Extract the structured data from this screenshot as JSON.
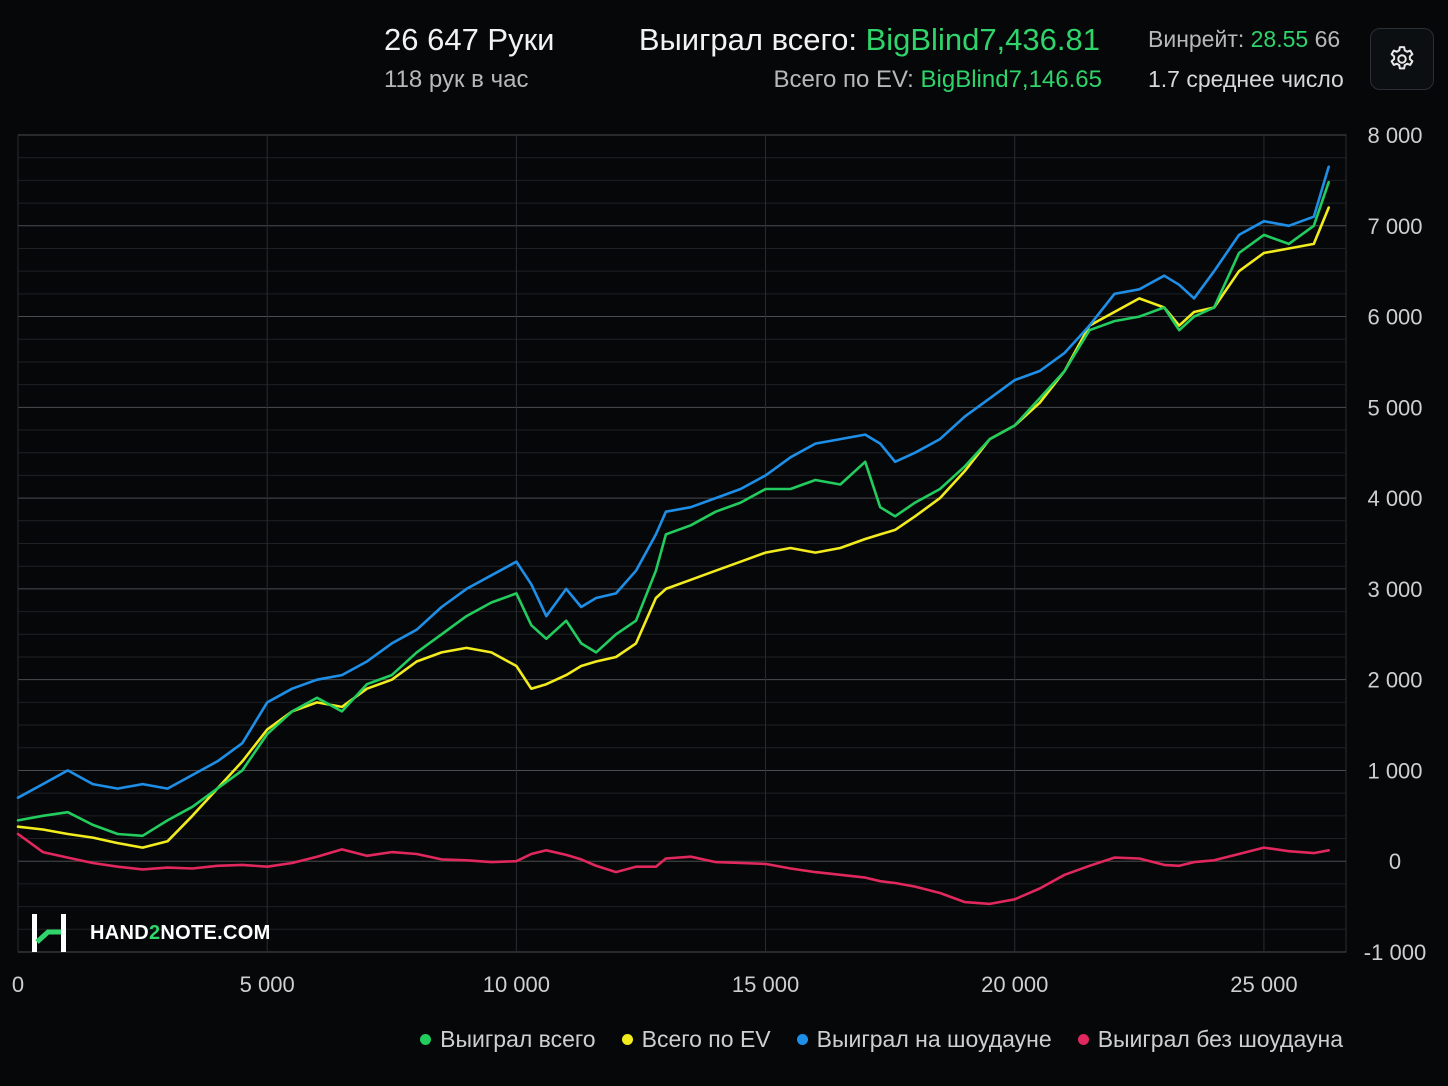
{
  "header": {
    "hands": "26 647 Руки",
    "hands_per_hour": "118 рук в час",
    "won_total_label": "Выиграл всего:",
    "won_total_value": "BigBlind7,436.81",
    "ev_total_label": "Всего по EV:",
    "ev_total_value": "BigBlind7,146.65",
    "winrate_label": "Винрейт:",
    "winrate_value": "28.55",
    "winrate_tail": "66",
    "avg_text": "1.7 среднее число"
  },
  "settings_icon": "gear-icon",
  "watermark": {
    "prefix": "HAND",
    "mid": "2",
    "suffix": "NOTE.COM"
  },
  "colors": {
    "won_total": "#22cc5e",
    "ev": "#f2ec1e",
    "showdown": "#1e8fe8",
    "non_showdown": "#e0285e",
    "background": "#050708",
    "accent_green": "#2fd46a"
  },
  "chart_data": {
    "type": "line",
    "title": "",
    "xlabel": "",
    "ylabel": "",
    "xlim": [
      0,
      26647
    ],
    "ylim": [
      -1000,
      8000
    ],
    "x_ticks": [
      0,
      5000,
      10000,
      15000,
      20000,
      25000
    ],
    "x_tick_labels": [
      "0",
      "5 000",
      "10 000",
      "15 000",
      "20 000",
      "25 000"
    ],
    "y_ticks": [
      -1000,
      0,
      1000,
      2000,
      3000,
      4000,
      5000,
      6000,
      7000,
      8000
    ],
    "y_tick_labels": [
      "-1 000",
      "0",
      "1 000",
      "2 000",
      "3 000",
      "4 000",
      "5 000",
      "6 000",
      "7 000",
      "8 000"
    ],
    "grid": true,
    "legend_position": "bottom",
    "series": [
      {
        "name": "Выиграл всего",
        "color": "#22cc5e",
        "x": [
          0,
          500,
          1000,
          1500,
          2000,
          2500,
          3000,
          3500,
          4000,
          4500,
          5000,
          5500,
          6000,
          6500,
          7000,
          7500,
          8000,
          8500,
          9000,
          9500,
          10000,
          10300,
          10600,
          11000,
          11300,
          11600,
          12000,
          12400,
          12800,
          13000,
          13500,
          14000,
          14500,
          15000,
          15500,
          16000,
          16500,
          17000,
          17300,
          17600,
          18000,
          18500,
          19000,
          19500,
          20000,
          20500,
          21000,
          21500,
          22000,
          22500,
          23000,
          23300,
          23600,
          24000,
          24500,
          25000,
          25500,
          26000,
          26300
        ],
        "y": [
          450,
          500,
          540,
          400,
          300,
          280,
          450,
          600,
          800,
          1000,
          1400,
          1650,
          1800,
          1650,
          1950,
          2050,
          2300,
          2500,
          2700,
          2850,
          2950,
          2600,
          2450,
          2650,
          2400,
          2300,
          2500,
          2650,
          3200,
          3600,
          3700,
          3850,
          3950,
          4100,
          4100,
          4200,
          4150,
          4400,
          3900,
          3800,
          3950,
          4100,
          4350,
          4650,
          4800,
          5100,
          5400,
          5850,
          5950,
          6000,
          6100,
          5850,
          6000,
          6100,
          6700,
          6900,
          6800,
          7000,
          7480
        ]
      },
      {
        "name": "Всего по EV",
        "color": "#f2ec1e",
        "x": [
          0,
          500,
          1000,
          1500,
          2000,
          2500,
          3000,
          3500,
          4000,
          4500,
          5000,
          5500,
          6000,
          6500,
          7000,
          7500,
          8000,
          8500,
          9000,
          9500,
          10000,
          10300,
          10600,
          11000,
          11300,
          11600,
          12000,
          12400,
          12800,
          13000,
          13500,
          14000,
          14500,
          15000,
          15500,
          16000,
          16500,
          17000,
          17300,
          17600,
          18000,
          18500,
          19000,
          19500,
          20000,
          20500,
          21000,
          21500,
          22000,
          22500,
          23000,
          23300,
          23600,
          24000,
          24500,
          25000,
          25500,
          26000,
          26300
        ],
        "y": [
          380,
          350,
          300,
          260,
          200,
          150,
          220,
          500,
          800,
          1100,
          1450,
          1650,
          1750,
          1700,
          1900,
          2000,
          2200,
          2300,
          2350,
          2300,
          2150,
          1900,
          1950,
          2050,
          2150,
          2200,
          2250,
          2400,
          2900,
          3000,
          3100,
          3200,
          3300,
          3400,
          3450,
          3400,
          3450,
          3550,
          3600,
          3650,
          3800,
          4000,
          4300,
          4650,
          4800,
          5050,
          5400,
          5900,
          6050,
          6200,
          6100,
          5900,
          6050,
          6100,
          6500,
          6700,
          6750,
          6800,
          7200
        ]
      },
      {
        "name": "Выиграл на шоудауне",
        "color": "#1e8fe8",
        "x": [
          0,
          500,
          1000,
          1500,
          2000,
          2500,
          3000,
          3500,
          4000,
          4500,
          5000,
          5500,
          6000,
          6500,
          7000,
          7500,
          8000,
          8500,
          9000,
          9500,
          10000,
          10300,
          10600,
          11000,
          11300,
          11600,
          12000,
          12400,
          12800,
          13000,
          13500,
          14000,
          14500,
          15000,
          15500,
          16000,
          16500,
          17000,
          17300,
          17600,
          18000,
          18500,
          19000,
          19500,
          20000,
          20500,
          21000,
          21500,
          22000,
          22500,
          23000,
          23300,
          23600,
          24000,
          24500,
          25000,
          25500,
          26000,
          26300
        ],
        "y": [
          700,
          850,
          1000,
          850,
          800,
          850,
          800,
          950,
          1100,
          1300,
          1750,
          1900,
          2000,
          2050,
          2200,
          2400,
          2550,
          2800,
          3000,
          3150,
          3300,
          3050,
          2700,
          3000,
          2800,
          2900,
          2950,
          3200,
          3600,
          3850,
          3900,
          4000,
          4100,
          4250,
          4450,
          4600,
          4650,
          4700,
          4600,
          4400,
          4500,
          4650,
          4900,
          5100,
          5300,
          5400,
          5600,
          5900,
          6250,
          6300,
          6450,
          6350,
          6200,
          6500,
          6900,
          7050,
          7000,
          7100,
          7650
        ]
      },
      {
        "name": "Выиграл без шоудауна",
        "color": "#e0285e",
        "x": [
          0,
          500,
          1000,
          1500,
          2000,
          2500,
          3000,
          3500,
          4000,
          4500,
          5000,
          5500,
          6000,
          6500,
          7000,
          7500,
          8000,
          8500,
          9000,
          9500,
          10000,
          10300,
          10600,
          11000,
          11300,
          11600,
          12000,
          12400,
          12800,
          13000,
          13500,
          14000,
          14500,
          15000,
          15500,
          16000,
          16500,
          17000,
          17300,
          17600,
          18000,
          18500,
          19000,
          19500,
          20000,
          20500,
          21000,
          21500,
          22000,
          22500,
          23000,
          23300,
          23600,
          24000,
          24500,
          25000,
          25500,
          26000,
          26300
        ],
        "y": [
          300,
          100,
          40,
          -20,
          -60,
          -90,
          -70,
          -80,
          -50,
          -40,
          -60,
          -20,
          50,
          130,
          60,
          100,
          80,
          20,
          10,
          -10,
          0,
          80,
          120,
          70,
          20,
          -50,
          -120,
          -60,
          -60,
          30,
          50,
          -10,
          -20,
          -30,
          -80,
          -120,
          -150,
          -180,
          -220,
          -240,
          -280,
          -350,
          -450,
          -470,
          -420,
          -300,
          -150,
          -50,
          40,
          30,
          -40,
          -50,
          -10,
          10,
          80,
          150,
          110,
          90,
          120
        ]
      }
    ]
  }
}
